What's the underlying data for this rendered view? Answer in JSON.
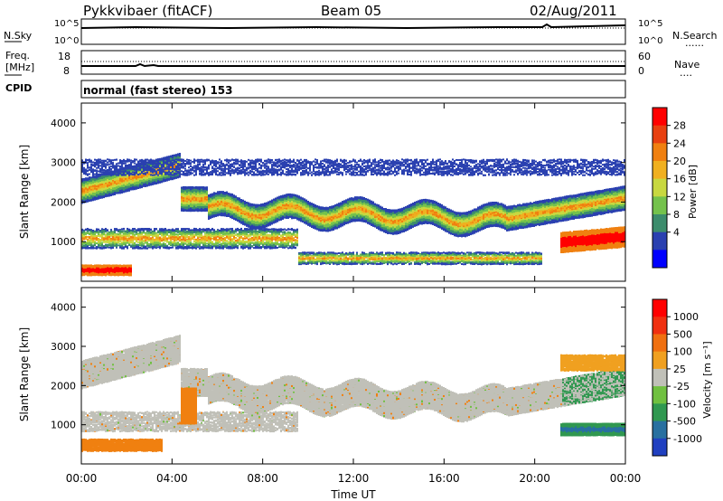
{
  "header": {
    "title": "Pykkvibaer (fitACF)",
    "beam": "Beam 05",
    "date": "02/Aug/2011"
  },
  "noise_panel": {
    "left_label": "N.Sky",
    "left_ticks": [
      "10^5",
      "10^0"
    ],
    "right_ticks": [
      "10^5",
      "10^0"
    ],
    "right_label": "N.Search",
    "legend_dots": "......"
  },
  "freq_panel": {
    "left_label_1": "Freq.",
    "left_label_2": "[MHz]",
    "left_ticks": [
      "18",
      "8"
    ],
    "right_ticks": [
      "60",
      "0"
    ],
    "right_label": "Nave",
    "legend_dots": "...."
  },
  "cpid_panel": {
    "label": "CPID",
    "text": "normal (fast stereo) 153"
  },
  "power_panel": {
    "ylabel": "Slant Range [km]",
    "yticks": [
      "4000",
      "3000",
      "2000",
      "1000"
    ],
    "colorbar_label": "Power [dB]",
    "colorbar_ticks": [
      "28",
      "24",
      "20",
      "16",
      "12",
      "8",
      "4"
    ],
    "colorbar_colors": [
      "#0000ff",
      "#2a40b0",
      "#3c8c6c",
      "#74c24c",
      "#c8d840",
      "#f0b020",
      "#f08010",
      "#e84010",
      "#ff0000"
    ]
  },
  "velocity_panel": {
    "ylabel": "Slant Range [km]",
    "yticks": [
      "4000",
      "3000",
      "2000",
      "1000"
    ],
    "colorbar_label": "Velocity [m s⁻¹]",
    "colorbar_ticks": [
      "1000",
      "500",
      "100",
      "25",
      "-25",
      "-100",
      "-500",
      "-1000"
    ],
    "colorbar_colors": [
      "#2040c0",
      "#2870a0",
      "#309850",
      "#70c040",
      "#c0c0b8",
      "#f0a020",
      "#f07010",
      "#f03010",
      "#ff0000"
    ]
  },
  "time_axis": {
    "xlabel": "Time UT",
    "ticks": [
      "00:00",
      "04:00",
      "08:00",
      "12:00",
      "16:00",
      "20:00",
      "00:00"
    ]
  }
}
